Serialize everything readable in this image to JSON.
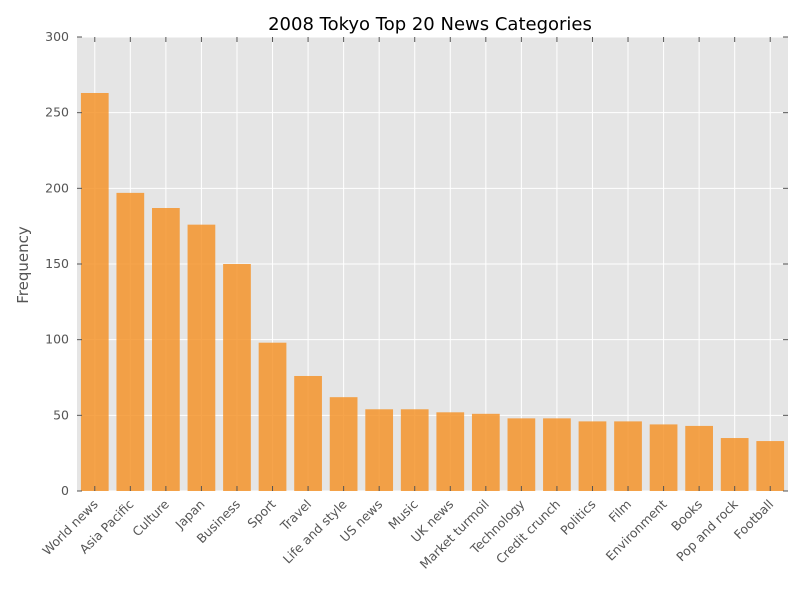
{
  "chart_data": {
    "type": "bar",
    "title": "2008 Tokyo Top 20 News Categories",
    "xlabel": "",
    "ylabel": "Frequency",
    "ylim": [
      0,
      300
    ],
    "yticks": [
      "0",
      "50",
      "100",
      "150",
      "200",
      "250",
      "300"
    ],
    "categories": [
      "World news",
      "Asia Pacific",
      "Culture",
      "Japan",
      "Business",
      "Sport",
      "Travel",
      "Life and style",
      "US news",
      "Music",
      "UK news",
      "Market turmoil",
      "Technology",
      "Credit crunch",
      "Politics",
      "Film",
      "Environment",
      "Books",
      "Pop and rock",
      "Football"
    ],
    "values": [
      263,
      197,
      187,
      176,
      150,
      98,
      76,
      62,
      54,
      54,
      52,
      51,
      48,
      48,
      46,
      46,
      44,
      43,
      35,
      33
    ],
    "grid": true,
    "bar_color": "#f5942c",
    "background_color": "#e5e5e5",
    "grid_color": "#ffffff"
  }
}
